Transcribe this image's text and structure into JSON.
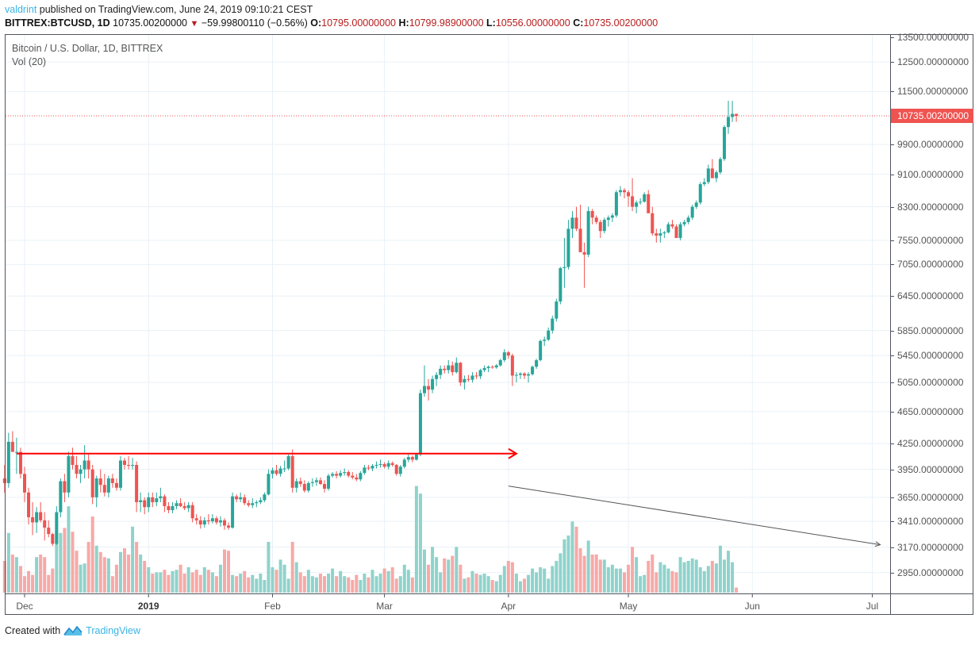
{
  "header": {
    "author": "valdrint",
    "published_text": " published on TradingView.com, June 24, 2019 09:10:21 CEST",
    "symbol": "BITTREX:BTCUSD, 1D",
    "last": "10735.00200000",
    "change_icon": "triangle-down",
    "change": "−59.99800110 (−0.56%)",
    "o_label": "O:",
    "o_value": "10795.00000000",
    "h_label": "H:",
    "h_value": "10799.98900000",
    "l_label": "L:",
    "l_value": "10556.00000000",
    "c_label": "C:",
    "c_value": "10735.00200000"
  },
  "legend": {
    "series_title": "Bitcoin / U.S. Dollar, 1D, BITTREX",
    "volume_title": "Vol (20)"
  },
  "footer": {
    "created_with": "Created with",
    "brand": "TradingView"
  },
  "colors": {
    "up": "#26a69a",
    "down": "#ef5350",
    "vol_up": "#8fd3cb",
    "vol_down": "#f7a9a7",
    "grid": "#e9f1f7",
    "axis": "#50535e",
    "resistance_line": "#ff0000",
    "trend_line": "#555555",
    "brand": "#3bb3e4"
  },
  "chart_data": {
    "type": "candlestick",
    "title": "Bitcoin / U.S. Dollar, 1D, BITTREX",
    "subtitle": "Vol (20)",
    "y_scale": "log",
    "ylim": [
      2700,
      13700
    ],
    "y_ticks": [
      "13500.00000000",
      "12500.00000000",
      "11500.00000000",
      "9900.00000000",
      "9100.00000000",
      "8300.00000000",
      "7550.00000000",
      "7050.00000000",
      "6450.00000000",
      "5850.00000000",
      "5450.00000000",
      "5050.00000000",
      "4650.00000000",
      "4250.00000000",
      "3950.00000000",
      "3650.00000000",
      "3410.00000000",
      "3170.00000000",
      "2950.00000000"
    ],
    "y_tick_values": [
      13500,
      12500,
      11500,
      9900,
      9100,
      8300,
      7550,
      7050,
      6450,
      5850,
      5450,
      5050,
      4650,
      4250,
      3950,
      3650,
      3410,
      3170,
      2950
    ],
    "last_price_label": "10735.00200000",
    "last_price": 10735.002,
    "x_ticks": [
      {
        "label": "Dec",
        "day": 5,
        "bold": false
      },
      {
        "label": "2019",
        "day": 36,
        "bold": true
      },
      {
        "label": "Feb",
        "day": 67,
        "bold": false
      },
      {
        "label": "Mar",
        "day": 95,
        "bold": false
      },
      {
        "label": "Apr",
        "day": 126,
        "bold": false
      },
      {
        "label": "May",
        "day": 156,
        "bold": false
      },
      {
        "label": "Jun",
        "day": 187,
        "bold": false
      },
      {
        "label": "Jul",
        "day": 217,
        "bold": false
      }
    ],
    "x_start_date": "2018-11-26",
    "annotations": [
      {
        "type": "horizontal_ray",
        "color": "#ff0000",
        "price": 4130,
        "from_day": 3,
        "to_day": 128,
        "arrow": true,
        "label": "resistance"
      },
      {
        "type": "trend_line",
        "color": "#555555",
        "pane": "volume",
        "from": {
          "day": 126,
          "vol": 0.84
        },
        "to": {
          "day": 217,
          "vol": 0.44
        },
        "arrow": true,
        "label": "declining volume"
      }
    ],
    "ohlcv": [
      [
        3850,
        4000,
        3700,
        3800,
        0.25
      ],
      [
        3800,
        4380,
        3750,
        4270,
        0.47
      ],
      [
        4270,
        4400,
        4150,
        4150,
        0.3
      ],
      [
        4150,
        4320,
        3900,
        4150,
        0.28
      ],
      [
        4150,
        4200,
        3850,
        3900,
        0.21
      ],
      [
        3900,
        3980,
        3600,
        3700,
        0.13
      ],
      [
        3700,
        3750,
        3380,
        3450,
        0.17
      ],
      [
        3450,
        3600,
        3280,
        3400,
        0.14
      ],
      [
        3400,
        3550,
        3300,
        3500,
        0.28
      ],
      [
        3500,
        3600,
        3400,
        3420,
        0.3
      ],
      [
        3420,
        3500,
        3230,
        3350,
        0.28
      ],
      [
        3350,
        3420,
        3260,
        3290,
        0.14
      ],
      [
        3290,
        3300,
        3180,
        3200,
        0.19
      ],
      [
        3200,
        3560,
        3190,
        3500,
        0.48
      ],
      [
        3500,
        3850,
        3450,
        3820,
        0.47
      ],
      [
        3820,
        3900,
        3600,
        3700,
        0.51
      ],
      [
        3700,
        4150,
        3650,
        4100,
        0.68
      ],
      [
        4100,
        4200,
        3950,
        4000,
        0.48
      ],
      [
        4000,
        4100,
        3850,
        3900,
        0.33
      ],
      [
        3900,
        4000,
        3800,
        3950,
        0.22
      ],
      [
        3950,
        4230,
        3850,
        4050,
        0.23
      ],
      [
        4050,
        4120,
        3850,
        3950,
        0.4
      ],
      [
        3950,
        4000,
        3580,
        3650,
        0.6
      ],
      [
        3650,
        3880,
        3550,
        3850,
        0.37
      ],
      [
        3850,
        3950,
        3700,
        3780,
        0.32
      ],
      [
        3780,
        3900,
        3660,
        3700,
        0.28
      ],
      [
        3700,
        3880,
        3650,
        3850,
        0.27
      ],
      [
        3850,
        3900,
        3750,
        3800,
        0.13
      ],
      [
        3800,
        3850,
        3720,
        3750,
        0.22
      ],
      [
        3750,
        4100,
        3720,
        4050,
        0.32
      ],
      [
        4050,
        4080,
        3950,
        4000,
        0.35
      ],
      [
        4000,
        4100,
        3950,
        3990,
        0.3
      ],
      [
        3990,
        4080,
        3950,
        4000,
        0.52
      ],
      [
        4000,
        4040,
        3500,
        3600,
        0.4
      ],
      [
        3600,
        3700,
        3500,
        3620,
        0.3
      ],
      [
        3620,
        3650,
        3480,
        3550,
        0.25
      ],
      [
        3550,
        3700,
        3500,
        3650,
        0.2
      ],
      [
        3650,
        3700,
        3550,
        3600,
        0.15
      ],
      [
        3600,
        3700,
        3560,
        3640,
        0.16
      ],
      [
        3640,
        3750,
        3600,
        3660,
        0.16
      ],
      [
        3660,
        3680,
        3500,
        3560,
        0.18
      ],
      [
        3560,
        3600,
        3490,
        3520,
        0.14
      ],
      [
        3520,
        3600,
        3490,
        3560,
        0.17
      ],
      [
        3560,
        3620,
        3530,
        3590,
        0.18
      ],
      [
        3590,
        3640,
        3550,
        3560,
        0.22
      ],
      [
        3560,
        3600,
        3520,
        3540,
        0.15
      ],
      [
        3540,
        3600,
        3500,
        3570,
        0.2
      ],
      [
        3570,
        3600,
        3400,
        3440,
        0.16
      ],
      [
        3440,
        3480,
        3380,
        3420,
        0.18
      ],
      [
        3420,
        3460,
        3340,
        3380,
        0.14
      ],
      [
        3380,
        3450,
        3350,
        3420,
        0.2
      ],
      [
        3420,
        3480,
        3380,
        3410,
        0.18
      ],
      [
        3410,
        3480,
        3390,
        3440,
        0.16
      ],
      [
        3440,
        3460,
        3380,
        3400,
        0.13
      ],
      [
        3400,
        3460,
        3360,
        3420,
        0.22
      ],
      [
        3420,
        3440,
        3330,
        3370,
        0.34
      ],
      [
        3370,
        3400,
        3330,
        3350,
        0.33
      ],
      [
        3350,
        3700,
        3340,
        3660,
        0.14
      ],
      [
        3660,
        3680,
        3600,
        3630,
        0.13
      ],
      [
        3630,
        3700,
        3600,
        3650,
        0.15
      ],
      [
        3650,
        3680,
        3570,
        3590,
        0.17
      ],
      [
        3590,
        3620,
        3550,
        3570,
        0.12
      ],
      [
        3570,
        3640,
        3540,
        3590,
        0.14
      ],
      [
        3590,
        3620,
        3550,
        3600,
        0.11
      ],
      [
        3600,
        3650,
        3580,
        3620,
        0.15
      ],
      [
        3620,
        3700,
        3600,
        3680,
        0.1
      ],
      [
        3680,
        3950,
        3670,
        3900,
        0.4
      ],
      [
        3900,
        3970,
        3850,
        3940,
        0.2
      ],
      [
        3940,
        4000,
        3880,
        3900,
        0.18
      ],
      [
        3900,
        3990,
        3870,
        3960,
        0.26
      ],
      [
        3960,
        4050,
        3920,
        3960,
        0.22
      ],
      [
        3960,
        4120,
        3940,
        4100,
        0.11
      ],
      [
        4100,
        4180,
        3700,
        3750,
        0.4
      ],
      [
        3750,
        3850,
        3700,
        3820,
        0.24
      ],
      [
        3820,
        3860,
        3760,
        3790,
        0.16
      ],
      [
        3790,
        3830,
        3700,
        3720,
        0.13
      ],
      [
        3720,
        3820,
        3700,
        3800,
        0.18
      ],
      [
        3800,
        3850,
        3760,
        3810,
        0.13
      ],
      [
        3810,
        3860,
        3770,
        3830,
        0.12
      ],
      [
        3830,
        3860,
        3780,
        3790,
        0.15
      ],
      [
        3790,
        3830,
        3700,
        3740,
        0.13
      ],
      [
        3740,
        3900,
        3720,
        3880,
        0.15
      ],
      [
        3880,
        3920,
        3860,
        3900,
        0.19
      ],
      [
        3900,
        3930,
        3850,
        3880,
        0.13
      ],
      [
        3880,
        3940,
        3860,
        3910,
        0.17
      ],
      [
        3910,
        3960,
        3880,
        3920,
        0.13
      ],
      [
        3920,
        3940,
        3860,
        3880,
        0.12
      ],
      [
        3880,
        3920,
        3840,
        3860,
        0.1
      ],
      [
        3860,
        3900,
        3820,
        3840,
        0.14
      ],
      [
        3840,
        3930,
        3820,
        3910,
        0.1
      ],
      [
        3910,
        4000,
        3890,
        3970,
        0.15
      ],
      [
        3970,
        4000,
        3940,
        3960,
        0.12
      ],
      [
        3960,
        4010,
        3930,
        3990,
        0.18
      ],
      [
        3990,
        4040,
        3960,
        4000,
        0.13
      ],
      [
        4000,
        4060,
        3970,
        4010,
        0.15
      ],
      [
        4010,
        4030,
        3960,
        3980,
        0.19
      ],
      [
        3980,
        4050,
        3950,
        4020,
        0.17
      ],
      [
        4020,
        4040,
        3980,
        4000,
        0.2
      ],
      [
        4000,
        4010,
        3880,
        3900,
        0.11
      ],
      [
        3900,
        4000,
        3870,
        3980,
        0.13
      ],
      [
        3980,
        4080,
        3960,
        4060,
        0.22
      ],
      [
        4060,
        4120,
        4030,
        4090,
        0.18
      ],
      [
        4090,
        4110,
        4030,
        4060,
        0.12
      ],
      [
        4060,
        4140,
        4050,
        4120,
        0.84
      ],
      [
        4120,
        4950,
        4100,
        4900,
        0.78
      ],
      [
        4900,
        5300,
        4850,
        5000,
        0.34
      ],
      [
        5000,
        5100,
        4800,
        4950,
        0.22
      ],
      [
        4950,
        5150,
        4900,
        5100,
        0.36
      ],
      [
        5100,
        5200,
        5000,
        5160,
        0.28
      ],
      [
        5160,
        5300,
        5100,
        5250,
        0.16
      ],
      [
        5250,
        5300,
        5180,
        5230,
        0.27
      ],
      [
        5230,
        5380,
        5180,
        5300,
        0.26
      ],
      [
        5300,
        5360,
        5150,
        5200,
        0.29
      ],
      [
        5200,
        5420,
        5180,
        5340,
        0.36
      ],
      [
        5340,
        5350,
        5000,
        5050,
        0.22
      ],
      [
        5050,
        5150,
        4950,
        5100,
        0.11
      ],
      [
        5100,
        5160,
        5060,
        5090,
        0.12
      ],
      [
        5090,
        5200,
        5050,
        5150,
        0.17
      ],
      [
        5150,
        5200,
        5100,
        5140,
        0.15
      ],
      [
        5140,
        5250,
        5100,
        5230,
        0.14
      ],
      [
        5230,
        5300,
        5200,
        5260,
        0.15
      ],
      [
        5260,
        5300,
        5200,
        5280,
        0.13
      ],
      [
        5280,
        5300,
        5250,
        5270,
        0.1
      ],
      [
        5270,
        5320,
        5250,
        5300,
        0.09
      ],
      [
        5300,
        5400,
        5280,
        5380,
        0.14
      ],
      [
        5380,
        5550,
        5350,
        5500,
        0.21
      ],
      [
        5500,
        5520,
        5400,
        5450,
        0.25
      ],
      [
        5450,
        5480,
        5000,
        5150,
        0.24
      ],
      [
        5150,
        5200,
        5050,
        5160,
        0.15
      ],
      [
        5160,
        5200,
        5100,
        5180,
        0.09
      ],
      [
        5180,
        5200,
        5100,
        5150,
        0.11
      ],
      [
        5150,
        5200,
        5050,
        5170,
        0.14
      ],
      [
        5170,
        5300,
        5150,
        5280,
        0.19
      ],
      [
        5280,
        5400,
        5250,
        5380,
        0.16
      ],
      [
        5380,
        5700,
        5360,
        5680,
        0.2
      ],
      [
        5680,
        5750,
        5600,
        5700,
        0.19
      ],
      [
        5700,
        5900,
        5680,
        5850,
        0.11
      ],
      [
        5850,
        6100,
        5800,
        6050,
        0.21
      ],
      [
        6050,
        6400,
        6000,
        6350,
        0.25
      ],
      [
        6350,
        7000,
        6300,
        6980,
        0.31
      ],
      [
        6980,
        7600,
        6600,
        7000,
        0.42
      ],
      [
        7000,
        8000,
        6950,
        7800,
        0.45
      ],
      [
        7800,
        8200,
        7600,
        8050,
        0.56
      ],
      [
        8050,
        8300,
        7750,
        7800,
        0.52
      ],
      [
        7800,
        8350,
        7500,
        7300,
        0.35
      ],
      [
        7300,
        7500,
        6600,
        7250,
        0.29
      ],
      [
        7250,
        8300,
        7200,
        8200,
        0.41
      ],
      [
        8200,
        8250,
        7900,
        8050,
        0.3
      ],
      [
        8050,
        8100,
        7900,
        7950,
        0.3
      ],
      [
        7950,
        8000,
        7600,
        7750,
        0.26
      ],
      [
        7750,
        8050,
        7700,
        8000,
        0.26
      ],
      [
        8000,
        8100,
        7850,
        8050,
        0.2
      ],
      [
        8050,
        8150,
        7950,
        8100,
        0.22
      ],
      [
        8100,
        8700,
        8050,
        8650,
        0.19
      ],
      [
        8650,
        8800,
        8550,
        8700,
        0.19
      ],
      [
        8700,
        8750,
        8500,
        8650,
        0.16
      ],
      [
        8650,
        8700,
        8300,
        8550,
        0.22
      ],
      [
        8550,
        9000,
        8200,
        8300,
        0.36
      ],
      [
        8300,
        8450,
        8150,
        8400,
        0.28
      ],
      [
        8400,
        8500,
        8350,
        8420,
        0.13
      ],
      [
        8420,
        8650,
        8400,
        8600,
        0.14
      ],
      [
        8600,
        8700,
        8200,
        8150,
        0.25
      ],
      [
        8150,
        8300,
        7650,
        7700,
        0.3
      ],
      [
        7700,
        7800,
        7500,
        7650,
        0.16
      ],
      [
        7650,
        7800,
        7500,
        7700,
        0.24
      ],
      [
        7700,
        7750,
        7600,
        7720,
        0.22
      ],
      [
        7720,
        7950,
        7700,
        7900,
        0.19
      ],
      [
        7900,
        8000,
        7800,
        7850,
        0.17
      ],
      [
        7850,
        7900,
        7600,
        7600,
        0.16
      ],
      [
        7600,
        7950,
        7550,
        7900,
        0.28
      ],
      [
        7900,
        8000,
        7850,
        7950,
        0.24
      ],
      [
        7950,
        8100,
        7900,
        8050,
        0.25
      ],
      [
        8050,
        8350,
        8000,
        8300,
        0.27
      ],
      [
        8300,
        8450,
        8250,
        8400,
        0.26
      ],
      [
        8400,
        8900,
        8350,
        8850,
        0.2
      ],
      [
        8850,
        9000,
        8800,
        8900,
        0.17
      ],
      [
        8900,
        9350,
        8850,
        9250,
        0.21
      ],
      [
        9250,
        9500,
        9150,
        9000,
        0.25
      ],
      [
        9000,
        9200,
        8900,
        9150,
        0.23
      ],
      [
        9150,
        9550,
        9100,
        9500,
        0.37
      ],
      [
        9500,
        10450,
        9450,
        10400,
        0.26
      ],
      [
        10400,
        11200,
        10200,
        10700,
        0.33
      ],
      [
        10700,
        11200,
        10550,
        10795,
        0.24
      ],
      [
        10795,
        10800,
        10556,
        10735,
        0.04
      ]
    ]
  }
}
